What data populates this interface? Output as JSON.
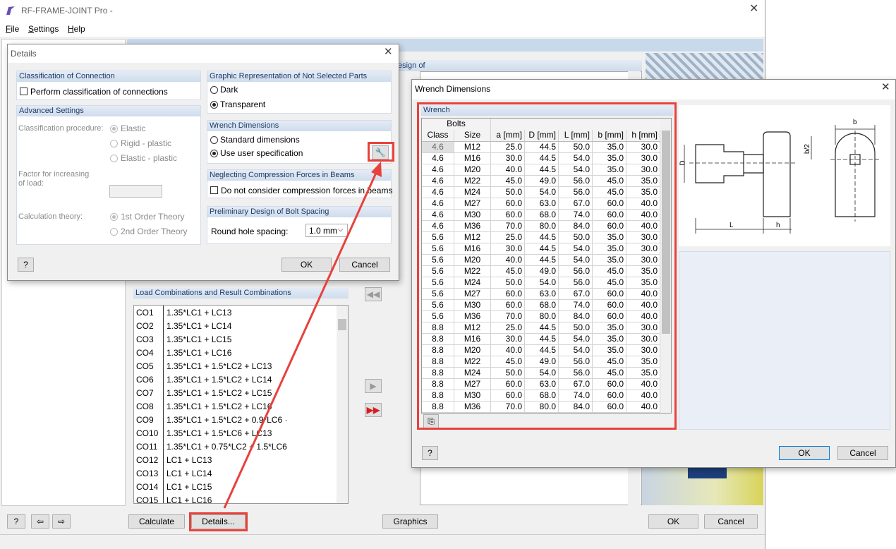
{
  "main_window": {
    "title": "RF-FRAME-JOINT Pro -",
    "menu": [
      "File",
      "Settings",
      "Help"
    ],
    "panel_heading": "esign of",
    "buttons": {
      "calculate": "Calculate",
      "details": "Details...",
      "graphics": "Graphics",
      "ok": "OK",
      "cancel": "Cancel"
    }
  },
  "load_combinations": {
    "title": "Load Combinations and Result Combinations",
    "rows": [
      [
        "CO1",
        "1.35*LC1 + LC13"
      ],
      [
        "CO2",
        "1.35*LC1 + LC14"
      ],
      [
        "CO3",
        "1.35*LC1 + LC15"
      ],
      [
        "CO4",
        "1.35*LC1 + LC16"
      ],
      [
        "CO5",
        "1.35*LC1 + 1.5*LC2 + LC13"
      ],
      [
        "CO6",
        "1.35*LC1 + 1.5*LC2 + LC14"
      ],
      [
        "CO7",
        "1.35*LC1 + 1.5*LC2 + LC15"
      ],
      [
        "CO8",
        "1.35*LC1 + 1.5*LC2 + LC16"
      ],
      [
        "CO9",
        "1.35*LC1 + 1.5*LC2 + 0.9*LC6 ·"
      ],
      [
        "CO10",
        "1.35*LC1 + 1.5*LC6 + LC13"
      ],
      [
        "CO11",
        "1.35*LC1 + 0.75*LC2 + 1.5*LC6"
      ],
      [
        "CO12",
        "LC1 + LC13"
      ],
      [
        "CO13",
        "LC1 + LC14"
      ],
      [
        "CO14",
        "LC1 + LC15"
      ],
      [
        "CO15",
        "LC1 + LC16"
      ]
    ]
  },
  "details_dialog": {
    "title": "Details",
    "classification": {
      "heading": "Classification of Connection",
      "checkbox": "Perform classification of connections"
    },
    "advanced": {
      "heading": "Advanced Settings",
      "procedure_label": "Classification procedure:",
      "procedure_options": [
        "Elastic",
        "Rigid - plastic",
        "Elastic - plastic"
      ],
      "procedure_selected": 0,
      "factor_label": [
        "Factor for increasing",
        "of load:"
      ],
      "theory_label": "Calculation theory:",
      "theory_options": [
        "1st Order Theory",
        "2nd Order Theory"
      ],
      "theory_selected": 0
    },
    "graphic": {
      "heading": "Graphic Representation of Not Selected Parts",
      "options": [
        "Dark",
        "Transparent"
      ],
      "selected": 1
    },
    "wrench": {
      "heading": "Wrench Dimensions",
      "options": [
        "Standard dimensions",
        "Use user specification"
      ],
      "selected": 1
    },
    "neglecting": {
      "heading": "Neglecting Compression Forces in Beams",
      "checkbox": "Do not consider compression forces in beams"
    },
    "bolt_spacing": {
      "heading": "Preliminary Design of Bolt Spacing",
      "label": "Round hole spacing:",
      "value": "1.0 mm"
    },
    "buttons": {
      "ok": "OK",
      "cancel": "Cancel"
    }
  },
  "wrench_dialog": {
    "title": "Wrench Dimensions",
    "group": "Wrench",
    "table": {
      "group_header": "Bolts",
      "columns": [
        "Class",
        "Size",
        "a [mm]",
        "D [mm]",
        "L [mm]",
        "b [mm]",
        "h [mm]"
      ],
      "rows": [
        [
          "4.6",
          "M12",
          "25.0",
          "44.5",
          "50.0",
          "35.0",
          "30.0"
        ],
        [
          "4.6",
          "M16",
          "30.0",
          "44.5",
          "54.0",
          "35.0",
          "30.0"
        ],
        [
          "4.6",
          "M20",
          "40.0",
          "44.5",
          "54.0",
          "35.0",
          "30.0"
        ],
        [
          "4.6",
          "M22",
          "45.0",
          "49.0",
          "56.0",
          "45.0",
          "35.0"
        ],
        [
          "4.6",
          "M24",
          "50.0",
          "54.0",
          "56.0",
          "45.0",
          "35.0"
        ],
        [
          "4.6",
          "M27",
          "60.0",
          "63.0",
          "67.0",
          "60.0",
          "40.0"
        ],
        [
          "4.6",
          "M30",
          "60.0",
          "68.0",
          "74.0",
          "60.0",
          "40.0"
        ],
        [
          "4.6",
          "M36",
          "70.0",
          "80.0",
          "84.0",
          "60.0",
          "40.0"
        ],
        [
          "5.6",
          "M12",
          "25.0",
          "44.5",
          "50.0",
          "35.0",
          "30.0"
        ],
        [
          "5.6",
          "M16",
          "30.0",
          "44.5",
          "54.0",
          "35.0",
          "30.0"
        ],
        [
          "5.6",
          "M20",
          "40.0",
          "44.5",
          "54.0",
          "35.0",
          "30.0"
        ],
        [
          "5.6",
          "M22",
          "45.0",
          "49.0",
          "56.0",
          "45.0",
          "35.0"
        ],
        [
          "5.6",
          "M24",
          "50.0",
          "54.0",
          "56.0",
          "45.0",
          "35.0"
        ],
        [
          "5.6",
          "M27",
          "60.0",
          "63.0",
          "67.0",
          "60.0",
          "40.0"
        ],
        [
          "5.6",
          "M30",
          "60.0",
          "68.0",
          "74.0",
          "60.0",
          "40.0"
        ],
        [
          "5.6",
          "M36",
          "70.0",
          "80.0",
          "84.0",
          "60.0",
          "40.0"
        ],
        [
          "8.8",
          "M12",
          "25.0",
          "44.5",
          "50.0",
          "35.0",
          "30.0"
        ],
        [
          "8.8",
          "M16",
          "30.0",
          "44.5",
          "54.0",
          "35.0",
          "30.0"
        ],
        [
          "8.8",
          "M20",
          "40.0",
          "44.5",
          "54.0",
          "35.0",
          "30.0"
        ],
        [
          "8.8",
          "M22",
          "45.0",
          "49.0",
          "56.0",
          "45.0",
          "35.0"
        ],
        [
          "8.8",
          "M24",
          "50.0",
          "54.0",
          "56.0",
          "45.0",
          "35.0"
        ],
        [
          "8.8",
          "M27",
          "60.0",
          "63.0",
          "67.0",
          "60.0",
          "40.0"
        ],
        [
          "8.8",
          "M30",
          "60.0",
          "68.0",
          "74.0",
          "60.0",
          "40.0"
        ],
        [
          "8.8",
          "M36",
          "70.0",
          "80.0",
          "84.0",
          "60.0",
          "40.0"
        ]
      ]
    },
    "drawing_labels": {
      "b": "b",
      "half_b": "b/2",
      "D": "D",
      "L": "L",
      "h": "h"
    },
    "buttons": {
      "ok": "OK",
      "cancel": "Cancel"
    }
  }
}
